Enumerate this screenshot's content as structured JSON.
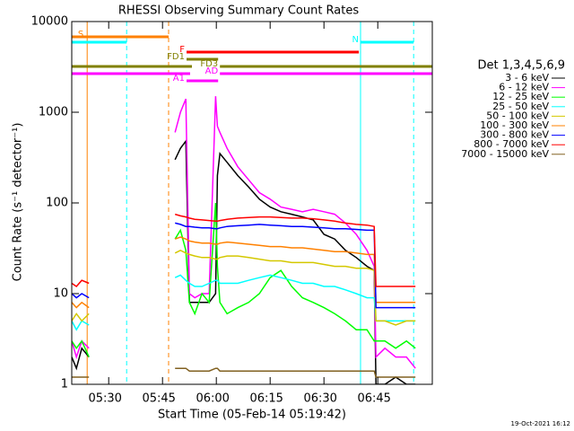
{
  "chart_data": {
    "type": "line",
    "title": "RHESSI Observing Summary Count Rates",
    "x_label": "Start Time (05-Feb-14 05:19:42)",
    "y_label": "Count Rate (s⁻¹ detector⁻¹)",
    "legend_title": "Det 1,3,4,5,6,9",
    "footer": "19-Oct-2021 16:12",
    "log_y": true,
    "xlim": [
      319.7,
      420.2
    ],
    "ylim": [
      1,
      10000
    ],
    "xticks": [
      {
        "value": 330,
        "label": "05:30"
      },
      {
        "value": 345,
        "label": "05:45"
      },
      {
        "value": 360,
        "label": "06:00"
      },
      {
        "value": 375,
        "label": "06:15"
      },
      {
        "value": 390,
        "label": "06:30"
      },
      {
        "value": 405,
        "label": "06:45"
      }
    ],
    "yticks": [
      1,
      10,
      100,
      1000,
      10000
    ],
    "x": [
      319.7,
      321,
      322.5,
      324.5,
      336,
      348.5,
      350,
      351.5,
      352.5,
      354,
      356,
      358,
      359.8,
      360.3,
      361,
      363,
      366,
      369,
      372,
      375,
      378,
      381,
      384,
      387,
      390,
      393,
      396,
      399,
      402,
      404,
      404.5,
      407,
      410,
      413,
      415.5
    ],
    "series": [
      {
        "name": "3 - 6 keV",
        "color": "#000000",
        "values": [
          2,
          1.5,
          2.5,
          2,
          null,
          300,
          400,
          480,
          8,
          8,
          8,
          8,
          10,
          200,
          350,
          280,
          200,
          150,
          110,
          90,
          80,
          75,
          70,
          65,
          45,
          40,
          30,
          25,
          20,
          18,
          1,
          1,
          1.2,
          1,
          1
        ]
      },
      {
        "name": "6 - 12 keV",
        "color": "#ff00ff",
        "values": [
          3,
          2,
          3,
          2.5,
          null,
          600,
          1000,
          1400,
          10,
          9,
          10,
          10,
          1500,
          700,
          600,
          400,
          250,
          180,
          130,
          110,
          90,
          85,
          80,
          85,
          80,
          75,
          60,
          45,
          30,
          20,
          2,
          2.5,
          2,
          2,
          1.5
        ]
      },
      {
        "name": "12 - 25 keV",
        "color": "#00ff00",
        "values": [
          3,
          2.5,
          3,
          2,
          null,
          40,
          50,
          30,
          8,
          6,
          10,
          8,
          100,
          20,
          8,
          6,
          7,
          8,
          10,
          15,
          18,
          12,
          9,
          8,
          7,
          6,
          5,
          4,
          4,
          3,
          3,
          3,
          2.5,
          3,
          2.5
        ]
      },
      {
        "name": "25 - 50 keV",
        "color": "#00ffff",
        "values": [
          5,
          4,
          5,
          4.5,
          null,
          15,
          16,
          14,
          13,
          12,
          12,
          13,
          14,
          14,
          13,
          13,
          13,
          14,
          15,
          16,
          15,
          14,
          13,
          13,
          12,
          12,
          11,
          10,
          9,
          9,
          5,
          5,
          5,
          5,
          5
        ]
      },
      {
        "name": "50 - 100 keV",
        "color": "#d4c800",
        "values": [
          5,
          6,
          5,
          6,
          null,
          28,
          30,
          28,
          27,
          26,
          25,
          25,
          24,
          24,
          25,
          26,
          26,
          25,
          24,
          23,
          23,
          22,
          22,
          22,
          21,
          20,
          20,
          19,
          19,
          18,
          5,
          5,
          4.5,
          5,
          5
        ]
      },
      {
        "name": "100 - 300 keV",
        "color": "#ff8000",
        "values": [
          8,
          7,
          8,
          7,
          null,
          40,
          42,
          40,
          38,
          37,
          36,
          36,
          35,
          35,
          36,
          37,
          36,
          35,
          34,
          33,
          33,
          32,
          32,
          31,
          30,
          29,
          29,
          28,
          27,
          27,
          8,
          8,
          8,
          8,
          8
        ]
      },
      {
        "name": "300 - 800 keV",
        "color": "#0000ff",
        "values": [
          10,
          9,
          10,
          9,
          null,
          60,
          58,
          55,
          55,
          54,
          53,
          53,
          52,
          52,
          53,
          55,
          56,
          57,
          58,
          57,
          56,
          55,
          55,
          54,
          53,
          52,
          52,
          51,
          50,
          50,
          7,
          7,
          7,
          7,
          7
        ]
      },
      {
        "name": "800 - 7000 keV",
        "color": "#ff0000",
        "values": [
          13,
          12,
          14,
          13,
          null,
          75,
          72,
          70,
          68,
          66,
          65,
          64,
          63,
          63,
          64,
          66,
          68,
          69,
          70,
          70,
          69,
          68,
          68,
          67,
          65,
          63,
          60,
          58,
          57,
          55,
          12,
          12,
          12,
          12,
          12
        ]
      },
      {
        "name": "7000 - 15000 keV",
        "color": "#806020",
        "values": [
          1.2,
          1.2,
          1.2,
          1.2,
          null,
          1.5,
          1.5,
          1.5,
          1.4,
          1.4,
          1.4,
          1.4,
          1.5,
          1.5,
          1.4,
          1.4,
          1.4,
          1.4,
          1.4,
          1.4,
          1.4,
          1.4,
          1.4,
          1.4,
          1.4,
          1.4,
          1.4,
          1.4,
          1.4,
          1.4,
          1.2,
          1.2,
          1.2,
          1.2,
          1.2
        ]
      }
    ],
    "flags": [
      {
        "label": "S",
        "color": "#ff8000",
        "ranges": [
          [
            319.7,
            346.7
          ]
        ]
      },
      {
        "label": "N",
        "color": "#00ffff",
        "ranges": [
          [
            319.7,
            335
          ],
          [
            400.2,
            415
          ]
        ]
      },
      {
        "label": "F",
        "color": "#ff0000",
        "ranges": [
          [
            351.7,
            399.7
          ]
        ]
      },
      {
        "label": "FD1",
        "color": "#808000",
        "ranges": [
          [
            351.7,
            360.5
          ]
        ]
      },
      {
        "label": "FD3",
        "color": "#808000",
        "ranges": [
          [
            319.7,
            353.2
          ],
          [
            361,
            420.2
          ]
        ]
      },
      {
        "label": "AD",
        "color": "#ff00ff",
        "ranges": [
          [
            319.7,
            352.7
          ],
          [
            361,
            420.2
          ]
        ]
      },
      {
        "label": "A1",
        "color": "#ff00ff",
        "ranges": [
          [
            351.7,
            360.5
          ]
        ]
      }
    ],
    "vlines": [
      {
        "x": 319.7,
        "color": "#00ffff",
        "dashed": false
      },
      {
        "x": 335,
        "color": "#00ffff",
        "dashed": true
      },
      {
        "x": 400.2,
        "color": "#00ffff",
        "dashed": false
      },
      {
        "x": 415,
        "color": "#00ffff",
        "dashed": true
      },
      {
        "x": 324,
        "color": "#ff8000",
        "dashed": false
      },
      {
        "x": 346.7,
        "color": "#ff8000",
        "dashed": true
      }
    ]
  }
}
